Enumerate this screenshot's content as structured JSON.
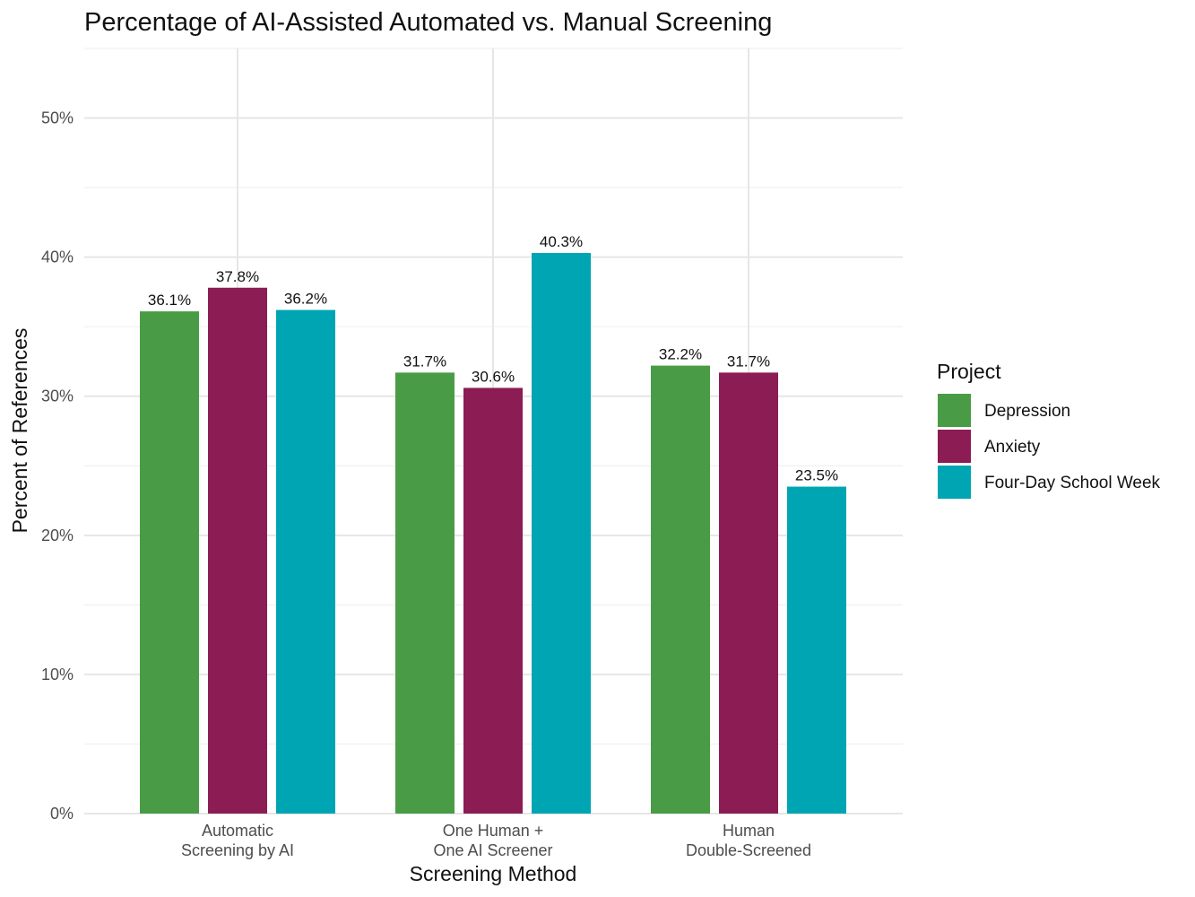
{
  "chart_data": {
    "type": "bar",
    "title": "Percentage of AI-Assisted Automated vs. Manual Screening",
    "xlabel": "Screening Method",
    "ylabel": "Percent of References",
    "ylim": [
      0,
      55
    ],
    "yticks": [
      0,
      10,
      20,
      30,
      40,
      50
    ],
    "ytick_labels": [
      "0%",
      "10%",
      "20%",
      "30%",
      "40%",
      "50%"
    ],
    "grid": true,
    "legend_title": "Project",
    "legend_position": "right",
    "categories": [
      [
        "Automatic",
        "Screening by AI"
      ],
      [
        "One Human +",
        "One AI Screener"
      ],
      [
        "Human",
        "Double-Screened"
      ]
    ],
    "series": [
      {
        "name": "Depression",
        "color": "#499c45",
        "values": [
          36.1,
          31.7,
          32.2
        ],
        "labels": [
          "36.1%",
          "31.7%",
          "32.2%"
        ]
      },
      {
        "name": "Anxiety",
        "color": "#8b1c54",
        "values": [
          37.8,
          30.6,
          31.7
        ],
        "labels": [
          "37.8%",
          "30.6%",
          "31.7%"
        ]
      },
      {
        "name": "Four-Day School Week",
        "color": "#00a5b3",
        "values": [
          36.2,
          40.3,
          23.5
        ],
        "labels": [
          "36.2%",
          "40.3%",
          "23.5%"
        ]
      }
    ]
  }
}
